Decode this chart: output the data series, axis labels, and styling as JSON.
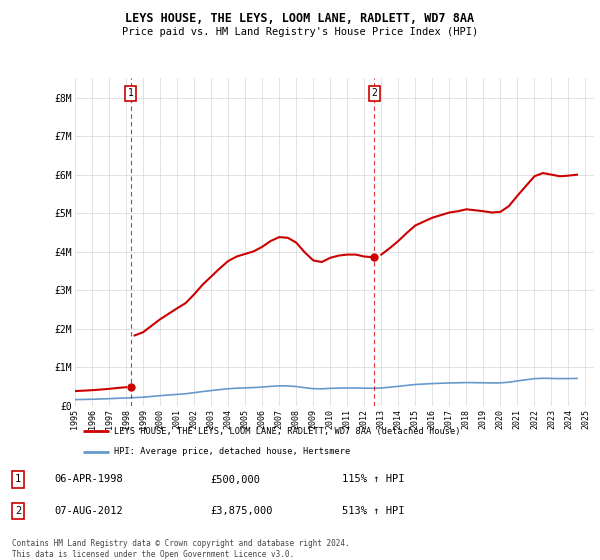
{
  "title1": "LEYS HOUSE, THE LEYS, LOOM LANE, RADLETT, WD7 8AA",
  "title2": "Price paid vs. HM Land Registry's House Price Index (HPI)",
  "ylabel_ticks": [
    "£0",
    "£1M",
    "£2M",
    "£3M",
    "£4M",
    "£5M",
    "£6M",
    "£7M",
    "£8M"
  ],
  "ytick_values": [
    0,
    1000000,
    2000000,
    3000000,
    4000000,
    5000000,
    6000000,
    7000000,
    8000000
  ],
  "ylim": [
    0,
    8500000
  ],
  "xlim_start": 1995.0,
  "xlim_end": 2025.5,
  "sale1_x": 1998.27,
  "sale1_y": 500000,
  "sale1_label": "1",
  "sale2_x": 2012.6,
  "sale2_y": 3875000,
  "sale2_label": "2",
  "background_color": "#ffffff",
  "plot_bg_color": "#ffffff",
  "grid_color": "#dddddd",
  "red_color": "#cc0000",
  "blue_color": "#6699cc",
  "legend_label1": "LEYS HOUSE, THE LEYS, LOOM LANE, RADLETT, WD7 8AA (detached house)",
  "legend_label2": "HPI: Average price, detached house, Hertsmere",
  "annotation1_date": "06-APR-1998",
  "annotation1_price": "£500,000",
  "annotation1_hpi": "115% ↑ HPI",
  "annotation2_date": "07-AUG-2012",
  "annotation2_price": "£3,875,000",
  "annotation2_hpi": "513% ↑ HPI",
  "footnote": "Contains HM Land Registry data © Crown copyright and database right 2024.\nThis data is licensed under the Open Government Licence v3.0.",
  "hpi_years": [
    1995,
    1995.5,
    1996,
    1996.5,
    1997,
    1997.5,
    1998,
    1998.5,
    1999,
    1999.5,
    2000,
    2000.5,
    2001,
    2001.5,
    2002,
    2002.5,
    2003,
    2003.5,
    2004,
    2004.5,
    2005,
    2005.5,
    2006,
    2006.5,
    2007,
    2007.5,
    2008,
    2008.5,
    2009,
    2009.5,
    2010,
    2010.5,
    2011,
    2011.5,
    2012,
    2012.5,
    2013,
    2013.5,
    2014,
    2014.5,
    2015,
    2015.5,
    2016,
    2016.5,
    2017,
    2017.5,
    2018,
    2018.5,
    2019,
    2019.5,
    2020,
    2020.5,
    2021,
    2021.5,
    2022,
    2022.5,
    2023,
    2023.5,
    2024,
    2024.5
  ],
  "hpi_vals": [
    165000,
    170000,
    175000,
    182000,
    190000,
    200000,
    208000,
    218000,
    228000,
    248000,
    268000,
    285000,
    302000,
    318000,
    345000,
    375000,
    400000,
    425000,
    448000,
    462000,
    470000,
    478000,
    492000,
    510000,
    522000,
    520000,
    505000,
    475000,
    450000,
    445000,
    458000,
    465000,
    468000,
    468000,
    462000,
    460000,
    468000,
    488000,
    510000,
    535000,
    558000,
    570000,
    582000,
    590000,
    598000,
    602000,
    608000,
    605000,
    602000,
    598000,
    600000,
    618000,
    650000,
    680000,
    710000,
    720000,
    715000,
    710000,
    712000,
    715000
  ]
}
